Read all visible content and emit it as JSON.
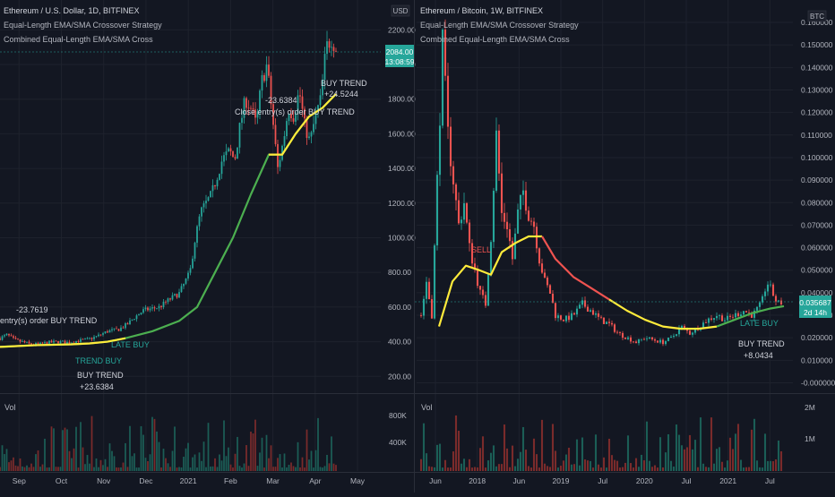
{
  "theme": {
    "background": "#131722",
    "divider": "#2a2e39",
    "grid": "#1e222d",
    "text": "#b2b5be",
    "candle_up": "#26a69a",
    "candle_down": "#ef5350",
    "volume_up": "#1b5e56",
    "volume_down": "#7a2b2b",
    "ema_yellow": "#ffeb3b",
    "ema_green": "#4caf50",
    "ema_red": "#ef5350",
    "price_tag": "#26a69a"
  },
  "chart_data": [
    {
      "type": "candlestick",
      "panel": "left",
      "title": "Ethereum / U.S. Dollar, 1D, BITFINEX",
      "indicators": [
        "Equal-Length EMA/SMA Crossover Strategy",
        "Combined Equal-Length EMA/SMA Cross"
      ],
      "currency_label": "USD",
      "last_price": "2084.00",
      "countdown": "13:08:59",
      "x_ticks": [
        "Sep",
        "Oct",
        "Nov",
        "Dec",
        "2021",
        "Feb",
        "Mar",
        "Apr",
        "May"
      ],
      "y_ticks": [
        "2200.00",
        "2000.00",
        "1800.00",
        "1600.00",
        "1400.00",
        "1200.00",
        "1000.00",
        "800.00",
        "600.00",
        "400.00",
        "200.00"
      ],
      "ylim": [
        160,
        2300
      ],
      "volume_label": "Vol",
      "volume_ticks": [
        "800K",
        "400K"
      ],
      "annotations": [
        {
          "text": "-23.7619"
        },
        {
          "text": "entry(s) order BUY TREND"
        },
        {
          "text": "TREND BUY"
        },
        {
          "text": "BUY TREND"
        },
        {
          "text": "+23.6384"
        },
        {
          "text": "LATE BUY"
        },
        {
          "text": "-23.6384"
        },
        {
          "text": "Close entry(s) order BUY TREND"
        },
        {
          "text": "BUY TREND"
        },
        {
          "text": "+24.5244"
        }
      ],
      "price_path": [
        [
          0,
          420
        ],
        [
          8,
          440
        ],
        [
          16,
          410
        ],
        [
          24,
          400
        ],
        [
          34,
          385
        ],
        [
          44,
          385
        ],
        [
          54,
          395
        ],
        [
          66,
          400
        ],
        [
          76,
          395
        ],
        [
          86,
          405
        ],
        [
          96,
          410
        ],
        [
          108,
          430
        ],
        [
          120,
          460
        ],
        [
          132,
          470
        ],
        [
          142,
          500
        ],
        [
          150,
          540
        ],
        [
          160,
          580
        ],
        [
          168,
          590
        ],
        [
          178,
          600
        ],
        [
          188,
          640
        ],
        [
          200,
          680
        ],
        [
          206,
          740
        ],
        [
          212,
          800
        ],
        [
          218,
          1000
        ],
        [
          224,
          1150
        ],
        [
          230,
          1200
        ],
        [
          236,
          1250
        ],
        [
          242,
          1350
        ],
        [
          248,
          1450
        ],
        [
          256,
          1500
        ],
        [
          262,
          1450
        ],
        [
          268,
          1650
        ],
        [
          274,
          1800
        ],
        [
          280,
          1750
        ],
        [
          286,
          1650
        ],
        [
          292,
          1900
        ],
        [
          298,
          2000
        ],
        [
          304,
          1700
        ],
        [
          310,
          1400
        ],
        [
          316,
          1550
        ],
        [
          322,
          1750
        ],
        [
          328,
          1700
        ],
        [
          334,
          1850
        ],
        [
          340,
          1650
        ],
        [
          346,
          1550
        ],
        [
          352,
          1700
        ],
        [
          358,
          1800
        ],
        [
          364,
          2100
        ],
        [
          370,
          2150
        ],
        [
          376,
          2084
        ]
      ],
      "ema_path": [
        [
          0,
          370
        ],
        [
          40,
          380
        ],
        [
          80,
          385
        ],
        [
          100,
          390
        ],
        [
          120,
          400
        ],
        [
          140,
          420
        ],
        [
          170,
          460
        ],
        [
          200,
          520
        ],
        [
          220,
          600
        ],
        [
          240,
          800
        ],
        [
          260,
          1000
        ],
        [
          280,
          1250
        ],
        [
          300,
          1480
        ],
        [
          315,
          1480
        ],
        [
          330,
          1600
        ],
        [
          345,
          1700
        ],
        [
          360,
          1750
        ],
        [
          375,
          1830
        ]
      ]
    },
    {
      "type": "candlestick",
      "panel": "right",
      "title": "Ethereum / Bitcoin, 1W, BITFINEX",
      "indicators": [
        "Equal-Length EMA/SMA Crossover Strategy",
        "Combined Equal-Length EMA/SMA Cross"
      ],
      "currency_label": "BTC",
      "last_price": "0.035687",
      "countdown": "2d 14h",
      "x_ticks": [
        "Jun",
        "2018",
        "Jun",
        "2019",
        "Jul",
        "2020",
        "Jul",
        "2021",
        "Jul"
      ],
      "y_ticks": [
        "0.160000",
        "0.150000",
        "0.140000",
        "0.130000",
        "0.120000",
        "0.110000",
        "0.100000",
        "0.090000",
        "0.080000",
        "0.070000",
        "0.060000",
        "0.050000",
        "0.040000",
        "0.030000",
        "0.020000",
        "0.010000",
        "-0.000000"
      ],
      "ylim": [
        -0.001,
        0.162
      ],
      "volume_label": "Vol",
      "volume_ticks": [
        "2M",
        "1M"
      ],
      "annotations": [
        {
          "text": "SELL"
        },
        {
          "text": "LATE BUY"
        },
        {
          "text": "BUY TREND"
        },
        {
          "text": "+8.0434"
        }
      ],
      "price_path": [
        [
          470,
          0.03
        ],
        [
          476,
          0.045
        ],
        [
          482,
          0.03
        ],
        [
          488,
          0.09
        ],
        [
          494,
          0.15
        ],
        [
          500,
          0.11
        ],
        [
          506,
          0.09
        ],
        [
          512,
          0.07
        ],
        [
          518,
          0.08
        ],
        [
          524,
          0.06
        ],
        [
          530,
          0.05
        ],
        [
          536,
          0.04
        ],
        [
          542,
          0.035
        ],
        [
          548,
          0.065
        ],
        [
          554,
          0.11
        ],
        [
          560,
          0.075
        ],
        [
          566,
          0.07
        ],
        [
          572,
          0.055
        ],
        [
          578,
          0.075
        ],
        [
          584,
          0.085
        ],
        [
          590,
          0.075
        ],
        [
          596,
          0.07
        ],
        [
          602,
          0.055
        ],
        [
          608,
          0.045
        ],
        [
          614,
          0.04
        ],
        [
          620,
          0.03
        ],
        [
          630,
          0.028
        ],
        [
          640,
          0.03
        ],
        [
          650,
          0.035
        ],
        [
          660,
          0.032
        ],
        [
          670,
          0.028
        ],
        [
          680,
          0.026
        ],
        [
          690,
          0.022
        ],
        [
          700,
          0.02
        ],
        [
          710,
          0.018
        ],
        [
          720,
          0.02
        ],
        [
          730,
          0.019
        ],
        [
          740,
          0.018
        ],
        [
          750,
          0.02
        ],
        [
          760,
          0.025
        ],
        [
          770,
          0.022
        ],
        [
          780,
          0.025
        ],
        [
          790,
          0.028
        ],
        [
          800,
          0.03
        ],
        [
          810,
          0.028
        ],
        [
          820,
          0.03
        ],
        [
          830,
          0.032
        ],
        [
          840,
          0.03
        ],
        [
          850,
          0.035
        ],
        [
          856,
          0.045
        ],
        [
          862,
          0.04
        ],
        [
          868,
          0.035
        ],
        [
          874,
          0.036
        ]
      ],
      "ema_segments": [
        {
          "color": "yellow",
          "points": [
            [
              490,
              0.025
            ],
            [
              505,
              0.045
            ],
            [
              520,
              0.052
            ],
            [
              535,
              0.05
            ],
            [
              548,
              0.048
            ],
            [
              560,
              0.058
            ],
            [
              575,
              0.062
            ],
            [
              590,
              0.065
            ],
            [
              605,
              0.065
            ]
          ]
        },
        {
          "color": "red",
          "points": [
            [
              605,
              0.065
            ],
            [
              620,
              0.055
            ],
            [
              640,
              0.047
            ],
            [
              660,
              0.042
            ],
            [
              680,
              0.037
            ]
          ]
        },
        {
          "color": "yellow",
          "points": [
            [
              680,
              0.037
            ],
            [
              700,
              0.032
            ],
            [
              720,
              0.028
            ],
            [
              740,
              0.025
            ],
            [
              760,
              0.024
            ],
            [
              780,
              0.024
            ],
            [
              800,
              0.025
            ]
          ]
        },
        {
          "color": "green",
          "points": [
            [
              800,
              0.025
            ],
            [
              820,
              0.028
            ],
            [
              840,
              0.031
            ],
            [
              860,
              0.033
            ],
            [
              875,
              0.034
            ]
          ]
        }
      ]
    }
  ]
}
